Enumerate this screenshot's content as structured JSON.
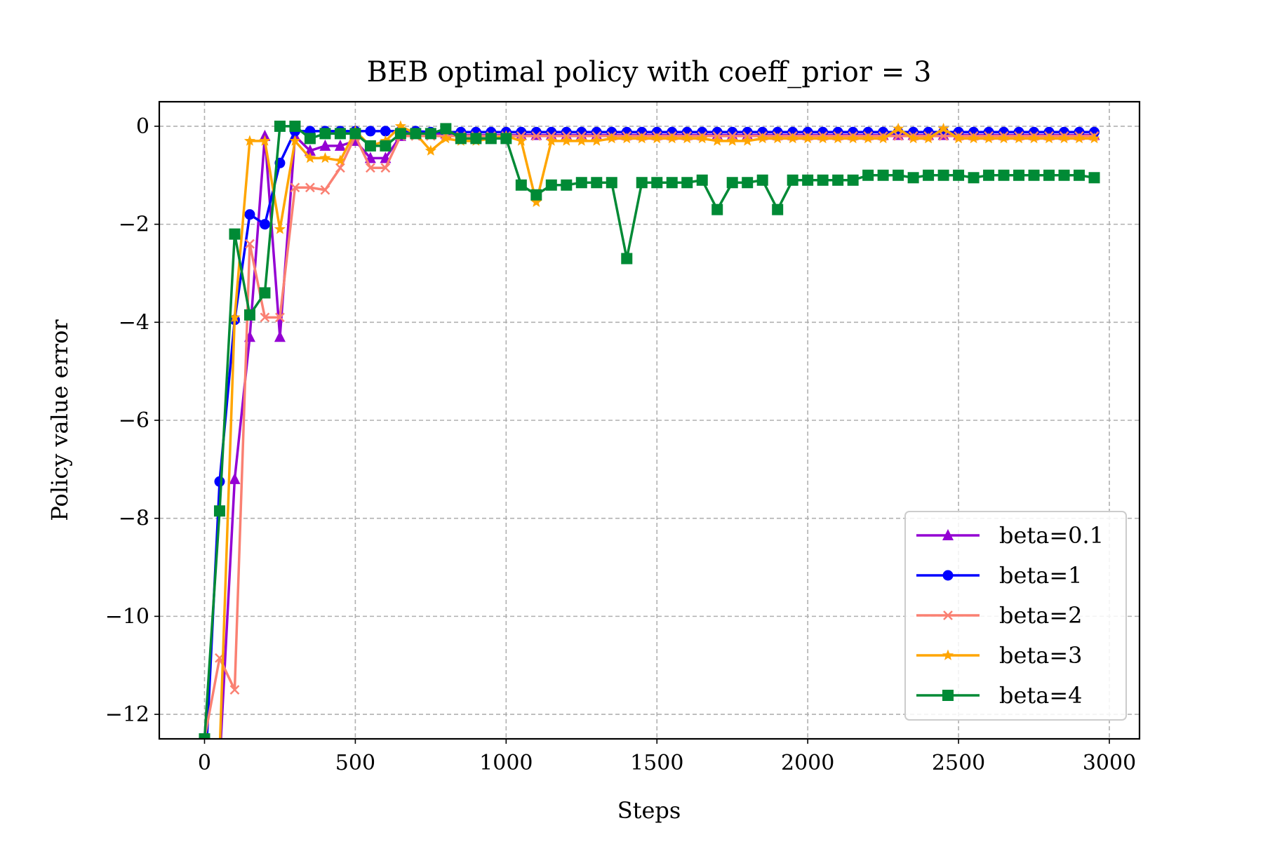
{
  "chart_data": {
    "type": "line",
    "title": "BEB optimal policy with coeff_prior = 3",
    "xlabel": "Steps",
    "ylabel": "Policy value error",
    "xlim": [
      -150,
      3100
    ],
    "ylim": [
      -12.5,
      0.5
    ],
    "xticks": [
      0,
      500,
      1000,
      1500,
      2000,
      2500,
      3000
    ],
    "xtick_labels": [
      "0",
      "500",
      "1000",
      "1500",
      "2000",
      "2500",
      "3000"
    ],
    "yticks": [
      0,
      -2,
      -4,
      -6,
      -8,
      -10,
      -12
    ],
    "ytick_labels": [
      "0",
      "−2",
      "−4",
      "−6",
      "−8",
      "−10",
      "−12"
    ],
    "grid": true,
    "legend_position": "lower-right",
    "x": [
      0,
      50,
      100,
      150,
      200,
      250,
      300,
      350,
      400,
      450,
      500,
      550,
      600,
      650,
      700,
      750,
      800,
      850,
      900,
      950,
      1000,
      1050,
      1100,
      1150,
      1200,
      1250,
      1300,
      1350,
      1400,
      1450,
      1500,
      1550,
      1600,
      1650,
      1700,
      1750,
      1800,
      1850,
      1900,
      1950,
      2000,
      2050,
      2100,
      2150,
      2200,
      2250,
      2300,
      2350,
      2400,
      2450,
      2500,
      2550,
      2600,
      2650,
      2700,
      2750,
      2800,
      2850,
      2900,
      2950
    ],
    "series": [
      {
        "name": "beta=0.1",
        "color": "#9400d3",
        "marker": "triangle",
        "values": [
          -13.5,
          -13.0,
          -7.2,
          -4.3,
          -0.2,
          -4.3,
          -0.2,
          -0.5,
          -0.4,
          -0.4,
          -0.3,
          -0.65,
          -0.65,
          -0.2,
          -0.15,
          -0.15,
          -0.15,
          -0.18,
          -0.18,
          -0.18,
          -0.18,
          -0.18,
          -0.18,
          -0.18,
          -0.18,
          -0.18,
          -0.18,
          -0.18,
          -0.18,
          -0.18,
          -0.18,
          -0.18,
          -0.18,
          -0.18,
          -0.18,
          -0.18,
          -0.18,
          -0.18,
          -0.18,
          -0.18,
          -0.18,
          -0.18,
          -0.18,
          -0.18,
          -0.18,
          -0.18,
          -0.18,
          -0.18,
          -0.18,
          -0.18,
          -0.18,
          -0.18,
          -0.18,
          -0.18,
          -0.18,
          -0.18,
          -0.18,
          -0.18,
          -0.18,
          -0.18
        ]
      },
      {
        "name": "beta=1",
        "color": "#0000ff",
        "marker": "circle",
        "values": [
          -13.5,
          -7.25,
          -3.95,
          -1.8,
          -2.0,
          -0.75,
          -0.1,
          -0.1,
          -0.1,
          -0.1,
          -0.1,
          -0.1,
          -0.1,
          -0.1,
          -0.1,
          -0.12,
          -0.12,
          -0.12,
          -0.12,
          -0.12,
          -0.12,
          -0.12,
          -0.12,
          -0.12,
          -0.12,
          -0.12,
          -0.12,
          -0.12,
          -0.12,
          -0.12,
          -0.12,
          -0.12,
          -0.12,
          -0.12,
          -0.12,
          -0.12,
          -0.12,
          -0.12,
          -0.12,
          -0.12,
          -0.12,
          -0.12,
          -0.12,
          -0.12,
          -0.12,
          -0.12,
          -0.12,
          -0.12,
          -0.12,
          -0.12,
          -0.12,
          -0.12,
          -0.12,
          -0.12,
          -0.12,
          -0.12,
          -0.12,
          -0.12,
          -0.12,
          -0.12
        ]
      },
      {
        "name": "beta=2",
        "color": "#fa8072",
        "marker": "x",
        "values": [
          -12.5,
          -10.85,
          -11.5,
          -2.4,
          -3.9,
          -3.9,
          -1.25,
          -1.25,
          -1.3,
          -0.85,
          -0.2,
          -0.85,
          -0.85,
          -0.2,
          -0.2,
          -0.2,
          -0.2,
          -0.2,
          -0.2,
          -0.2,
          -0.2,
          -0.2,
          -0.2,
          -0.2,
          -0.2,
          -0.2,
          -0.2,
          -0.2,
          -0.2,
          -0.2,
          -0.2,
          -0.2,
          -0.2,
          -0.2,
          -0.2,
          -0.2,
          -0.2,
          -0.2,
          -0.2,
          -0.2,
          -0.2,
          -0.2,
          -0.2,
          -0.2,
          -0.2,
          -0.2,
          -0.2,
          -0.2,
          -0.2,
          -0.2,
          -0.2,
          -0.2,
          -0.2,
          -0.2,
          -0.2,
          -0.2,
          -0.2,
          -0.2,
          -0.2,
          -0.2
        ]
      },
      {
        "name": "beta=3",
        "color": "#ffa500",
        "marker": "star",
        "values": [
          -13.5,
          -12.8,
          -3.9,
          -0.3,
          -0.3,
          -2.1,
          -0.3,
          -0.65,
          -0.65,
          -0.7,
          -0.1,
          -0.4,
          -0.3,
          0.0,
          -0.15,
          -0.5,
          -0.25,
          -0.3,
          -0.3,
          -0.25,
          -0.2,
          -0.3,
          -1.55,
          -0.3,
          -0.3,
          -0.3,
          -0.3,
          -0.25,
          -0.25,
          -0.25,
          -0.25,
          -0.25,
          -0.25,
          -0.25,
          -0.3,
          -0.3,
          -0.3,
          -0.25,
          -0.25,
          -0.25,
          -0.25,
          -0.25,
          -0.25,
          -0.25,
          -0.25,
          -0.25,
          -0.05,
          -0.25,
          -0.25,
          -0.05,
          -0.25,
          -0.25,
          -0.25,
          -0.25,
          -0.25,
          -0.25,
          -0.25,
          -0.25,
          -0.25,
          -0.25
        ]
      },
      {
        "name": "beta=4",
        "color": "#008a35",
        "marker": "square",
        "values": [
          -12.5,
          -7.85,
          -2.2,
          -3.85,
          -3.4,
          0.0,
          0.0,
          -0.25,
          -0.15,
          -0.15,
          -0.15,
          -0.4,
          -0.4,
          -0.15,
          -0.15,
          -0.15,
          -0.05,
          -0.25,
          -0.25,
          -0.25,
          -0.25,
          -1.2,
          -1.4,
          -1.2,
          -1.2,
          -1.15,
          -1.15,
          -1.15,
          -2.7,
          -1.15,
          -1.15,
          -1.15,
          -1.15,
          -1.1,
          -1.7,
          -1.15,
          -1.15,
          -1.1,
          -1.7,
          -1.1,
          -1.1,
          -1.1,
          -1.1,
          -1.1,
          -1.0,
          -1.0,
          -1.0,
          -1.05,
          -1.0,
          -1.0,
          -1.0,
          -1.05,
          -1.0,
          -1.0,
          -1.0,
          -1.0,
          -1.0,
          -1.0,
          -1.0,
          -1.05
        ]
      }
    ]
  }
}
